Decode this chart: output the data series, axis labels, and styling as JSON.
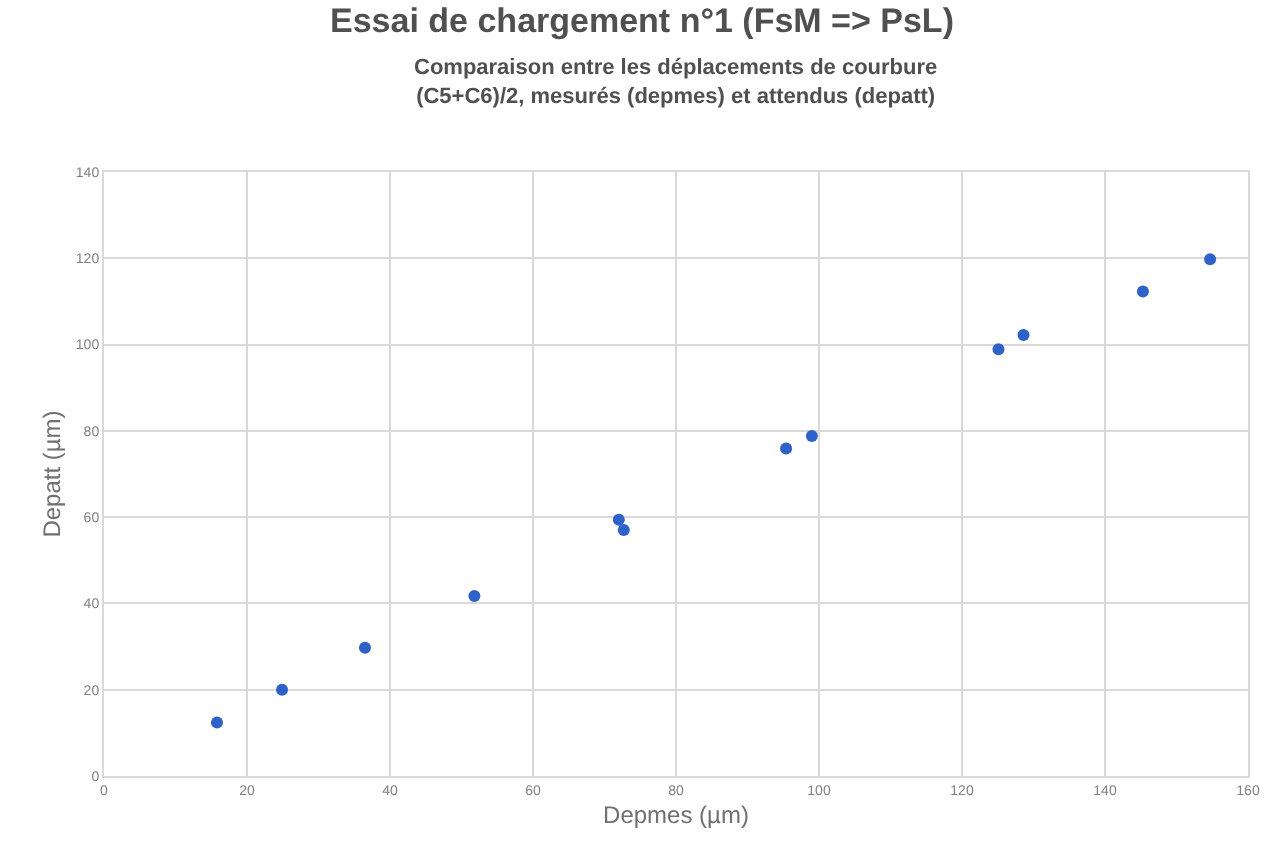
{
  "chart_data": {
    "type": "scatter",
    "title": "Essai de chargement n°1 (FsM => PsL)",
    "subtitle": "Comparaison entre les déplacements de courbure\n(C5+C6)/2, mesurés (depmes) et attendus (depatt)",
    "xlabel": "Depmes (µm)",
    "ylabel": "Depatt (µm)",
    "x": [
      15.8,
      24.9,
      36.5,
      51.8,
      72.0,
      72.7,
      95.4,
      99.0,
      125.1,
      128.6,
      145.3,
      154.7
    ],
    "series": [
      {
        "color": "#2f62c8",
        "values": [
          12.4,
          20,
          29.7,
          41.7,
          59.4,
          57.0,
          75.9,
          78.8,
          98.9,
          102.2,
          112.3,
          119.8
        ]
      }
    ],
    "xlim": [
      0,
      160
    ],
    "xticks": [
      0,
      20,
      40,
      60,
      80,
      100,
      120,
      140,
      160
    ],
    "ylim": [
      0,
      140
    ],
    "yticks": [
      0,
      20,
      40,
      60,
      80,
      100,
      120,
      140
    ],
    "grid": true,
    "marker": "circle"
  }
}
